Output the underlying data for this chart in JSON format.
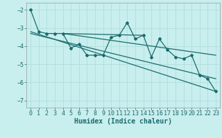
{
  "xlabel": "Humidex (Indice chaleur)",
  "bg_color": "#c8eeee",
  "grid_color": "#b0dede",
  "line_color": "#1a6b6b",
  "xlim": [
    -0.5,
    23.5
  ],
  "ylim": [
    -7.4,
    -1.6
  ],
  "yticks": [
    -7,
    -6,
    -5,
    -4,
    -3,
    -2
  ],
  "xticks": [
    0,
    1,
    2,
    3,
    4,
    5,
    6,
    7,
    8,
    9,
    10,
    11,
    12,
    13,
    14,
    15,
    16,
    17,
    18,
    19,
    20,
    21,
    22,
    23
  ],
  "series": [
    [
      0,
      -2.0
    ],
    [
      1,
      -3.2
    ],
    [
      2,
      -3.3
    ],
    [
      3,
      -3.3
    ],
    [
      4,
      -3.3
    ],
    [
      5,
      -4.1
    ],
    [
      6,
      -3.9
    ],
    [
      7,
      -4.5
    ],
    [
      8,
      -4.5
    ],
    [
      9,
      -4.5
    ],
    [
      10,
      -3.5
    ],
    [
      11,
      -3.4
    ],
    [
      12,
      -2.7
    ],
    [
      13,
      -3.6
    ],
    [
      14,
      -3.4
    ],
    [
      15,
      -4.6
    ],
    [
      16,
      -3.6
    ],
    [
      17,
      -4.2
    ],
    [
      18,
      -4.6
    ],
    [
      19,
      -4.7
    ],
    [
      20,
      -4.5
    ],
    [
      21,
      -5.6
    ],
    [
      22,
      -5.8
    ],
    [
      23,
      -6.5
    ]
  ],
  "trend_lines": [
    [
      [
        0,
        -3.2
      ],
      [
        23,
        -6.5
      ]
    ],
    [
      [
        0,
        -3.3
      ],
      [
        23,
        -5.8
      ]
    ],
    [
      [
        4,
        -3.3
      ],
      [
        23,
        -4.5
      ]
    ],
    [
      [
        4,
        -3.3
      ],
      [
        14,
        -3.4
      ]
    ]
  ],
  "tick_fontsize": 6,
  "label_fontsize": 7
}
